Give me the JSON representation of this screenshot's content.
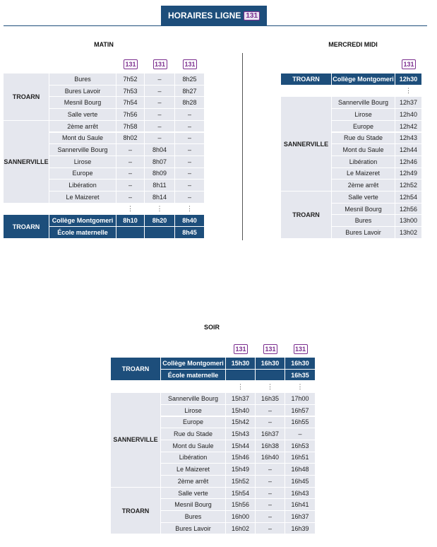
{
  "header": {
    "title": "HORAIRES LIGNE",
    "badge": "131"
  },
  "sections": [
    {
      "title": "MATIN",
      "badges": [
        "131",
        "131",
        "131"
      ],
      "blocks": [
        {
          "group": "TROARN",
          "rows": [
            {
              "stop": "Bures",
              "times": [
                "7h52",
                "–",
                "8h25"
              ]
            },
            {
              "stop": "Bures Lavoir",
              "times": [
                "7h53",
                "–",
                "8h27"
              ]
            },
            {
              "stop": "Mesnil Bourg",
              "times": [
                "7h54",
                "–",
                "8h28"
              ]
            },
            {
              "stop": "Salle verte",
              "times": [
                "7h56",
                "–",
                "–"
              ]
            }
          ]
        },
        {
          "group": "SANNERVILLE",
          "rows": [
            {
              "stop": "2ème arrêt",
              "times": [
                "7h58",
                "–",
                "–"
              ]
            },
            {
              "stop": "Mont du Saule",
              "times": [
                "8h02",
                "–",
                "–"
              ]
            },
            {
              "stop": "Sannerville Bourg",
              "times": [
                "–",
                "8h04",
                "–"
              ]
            },
            {
              "stop": "Lirose",
              "times": [
                "–",
                "8h07",
                "–"
              ]
            },
            {
              "stop": "Europe",
              "times": [
                "–",
                "8h09",
                "–"
              ]
            },
            {
              "stop": "Libération",
              "times": [
                "–",
                "8h11",
                "–"
              ]
            },
            {
              "stop": "Le Maizeret",
              "times": [
                "–",
                "8h14",
                "–"
              ]
            }
          ]
        },
        {
          "dots": [
            "⋮",
            "⋮",
            "⋮"
          ]
        },
        {
          "group": "TROARN",
          "dark": true,
          "rows": [
            {
              "stop": "Collège Montgomeri",
              "times": [
                "8h10",
                "8h20",
                "8h40"
              ]
            },
            {
              "stop": "École maternelle",
              "times": [
                null,
                null,
                "8h45"
              ]
            }
          ]
        }
      ]
    },
    {
      "title": "MERCREDI MIDI",
      "badges": [
        "131"
      ],
      "blocks": [
        {
          "group": "TROARN",
          "dark": true,
          "rows": [
            {
              "stop": "Collège Montgomeri",
              "times": [
                "12h30"
              ]
            }
          ]
        },
        {
          "dots": [
            "⋮"
          ]
        },
        {
          "group": "SANNERVILLE",
          "rows": [
            {
              "stop": "Sannerville Bourg",
              "times": [
                "12h37"
              ]
            },
            {
              "stop": "Lirose",
              "times": [
                "12h40"
              ]
            },
            {
              "stop": "Europe",
              "times": [
                "12h42"
              ]
            },
            {
              "stop": "Rue du Stade",
              "times": [
                "12h43"
              ]
            },
            {
              "stop": "Mont du Saule",
              "times": [
                "12h44"
              ]
            },
            {
              "stop": "Libération",
              "times": [
                "12h46"
              ]
            },
            {
              "stop": "Le Maizeret",
              "times": [
                "12h49"
              ]
            },
            {
              "stop": "2ème arrêt",
              "times": [
                "12h52"
              ]
            }
          ]
        },
        {
          "group": "TROARN",
          "rows": [
            {
              "stop": "Salle verte",
              "times": [
                "12h54"
              ]
            },
            {
              "stop": "Mesnil Bourg",
              "times": [
                "12h56"
              ]
            },
            {
              "stop": "Bures",
              "times": [
                "13h00"
              ]
            },
            {
              "stop": "Bures Lavoir",
              "times": [
                "13h02"
              ]
            }
          ]
        }
      ]
    },
    {
      "title": "SOIR",
      "badges": [
        "131",
        "131",
        "131"
      ],
      "blocks": [
        {
          "group": "TROARN",
          "dark": true,
          "rows": [
            {
              "stop": "Collège Montgomeri",
              "times": [
                "15h30",
                "16h30",
                "16h30"
              ]
            },
            {
              "stop": "École maternelle",
              "times": [
                null,
                null,
                "16h35"
              ]
            }
          ]
        },
        {
          "dots": [
            "⋮",
            "⋮",
            "⋮"
          ]
        },
        {
          "group": "SANNERVILLE",
          "rows": [
            {
              "stop": "Sannerville Bourg",
              "times": [
                "15h37",
                "16h35",
                "17h00"
              ]
            },
            {
              "stop": "Lirose",
              "times": [
                "15h40",
                "–",
                "16h57"
              ]
            },
            {
              "stop": "Europe",
              "times": [
                "15h42",
                "–",
                "16h55"
              ]
            },
            {
              "stop": "Rue du Stade",
              "times": [
                "15h43",
                "16h37",
                "–"
              ]
            },
            {
              "stop": "Mont du Saule",
              "times": [
                "15h44",
                "16h38",
                "16h53"
              ]
            },
            {
              "stop": "Libération",
              "times": [
                "15h46",
                "16h40",
                "16h51"
              ]
            },
            {
              "stop": "Le Maizeret",
              "times": [
                "15h49",
                "–",
                "16h48"
              ]
            },
            {
              "stop": "2ème arrêt",
              "times": [
                "15h52",
                "–",
                "16h45"
              ]
            }
          ]
        },
        {
          "group": "TROARN",
          "rows": [
            {
              "stop": "Salle verte",
              "times": [
                "15h54",
                "–",
                "16h43"
              ]
            },
            {
              "stop": "Mesnil Bourg",
              "times": [
                "15h56",
                "–",
                "16h41"
              ]
            },
            {
              "stop": "Bures",
              "times": [
                "16h00",
                "–",
                "16h37"
              ]
            },
            {
              "stop": "Bures Lavoir",
              "times": [
                "16h02",
                "–",
                "16h39"
              ]
            }
          ]
        }
      ]
    }
  ]
}
